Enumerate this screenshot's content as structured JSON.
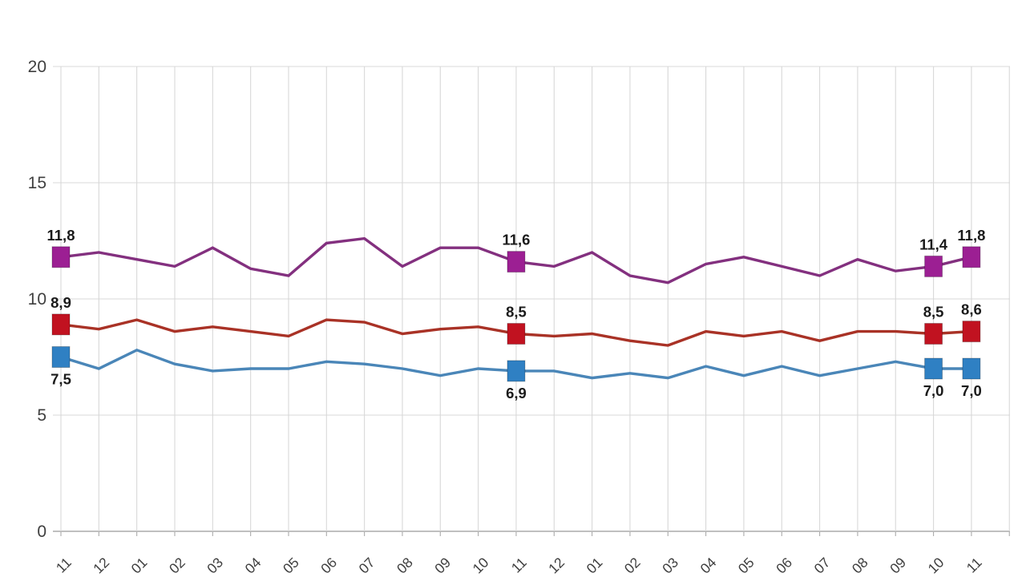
{
  "page": {
    "background_color": "#FFFFFF",
    "title": ""
  },
  "chart_data": {
    "type": "line",
    "title": "",
    "xlabel": "",
    "ylabel": "",
    "ylim": [
      0,
      20
    ],
    "yticks": [
      "0",
      "5",
      "10",
      "15",
      "20"
    ],
    "grid": true,
    "legend_position": "none",
    "decimal_separator": ",",
    "categories": [
      "11",
      "12",
      "01",
      "02",
      "03",
      "04",
      "05",
      "06",
      "07",
      "08",
      "09",
      "10",
      "11",
      "12",
      "01",
      "02",
      "03",
      "04",
      "05",
      "06",
      "07",
      "08",
      "09",
      "10",
      "11"
    ],
    "series": [
      {
        "name": "upper-purple-series",
        "line_color": "#83307F",
        "marker_color": "#9C1F93",
        "label_position": "above",
        "values": [
          11.8,
          12.0,
          11.7,
          11.4,
          12.2,
          11.3,
          11.0,
          12.4,
          12.6,
          11.4,
          12.2,
          12.2,
          11.6,
          11.4,
          12.0,
          11.0,
          10.7,
          11.5,
          11.8,
          11.4,
          11.0,
          11.7,
          11.2,
          11.4,
          11.8
        ],
        "point_labels": {
          "0": "11,8",
          "12": "11,6",
          "23": "11,4",
          "24": "11,8"
        }
      },
      {
        "name": "middle-red-series",
        "line_color": "#A93226",
        "marker_color": "#C11220",
        "label_position": "above",
        "values": [
          8.9,
          8.7,
          9.1,
          8.6,
          8.8,
          8.6,
          8.4,
          9.1,
          9.0,
          8.5,
          8.7,
          8.8,
          8.5,
          8.4,
          8.5,
          8.2,
          8.0,
          8.6,
          8.4,
          8.6,
          8.2,
          8.6,
          8.6,
          8.5,
          8.6
        ],
        "point_labels": {
          "0": "8,9",
          "12": "8,5",
          "23": "8,5",
          "24": "8,6"
        }
      },
      {
        "name": "lower-blue-series",
        "line_color": "#4A86B8",
        "marker_color": "#2F80C3",
        "label_position": "below",
        "values": [
          7.5,
          7.0,
          7.8,
          7.2,
          6.9,
          7.0,
          7.0,
          7.3,
          7.2,
          7.0,
          6.7,
          7.0,
          6.9,
          6.9,
          6.6,
          6.8,
          6.6,
          7.1,
          6.7,
          7.1,
          6.7,
          7.0,
          7.3,
          7.0,
          7.0
        ],
        "point_labels": {
          "0": "7,5",
          "12": "6,9",
          "23": "7,0",
          "24": "7,0"
        }
      }
    ],
    "style": {
      "gridline_color": "#D8D8D8",
      "axis_line_color": "#ABABAB",
      "tick_label_color": "#3F3F3F",
      "point_label_color": "#1A1A1A"
    }
  }
}
